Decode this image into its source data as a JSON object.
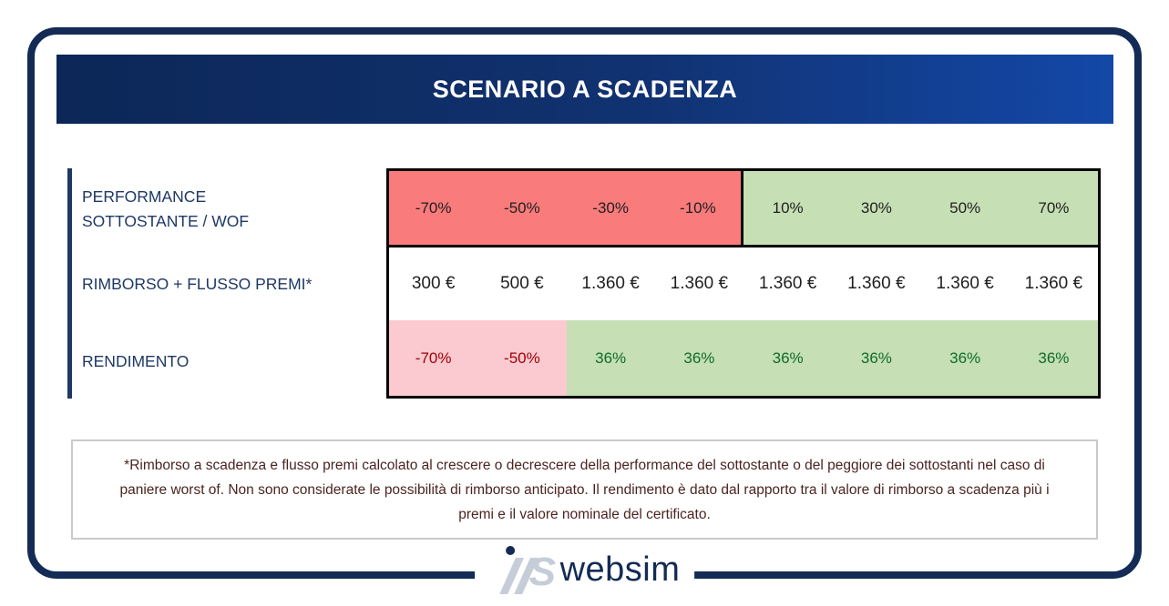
{
  "colors": {
    "navy": "#132B55",
    "header-grad-left": "#0C2757",
    "header-grad-right": "#1348A8",
    "label-blue": "#1F3864",
    "cell-red": "#F97B7B",
    "cell-green": "#C6DFB4",
    "cell-pink": "#FBC9D0",
    "text-dark-red": "#9C0006",
    "text-dark-green": "#0E6B2D",
    "footnote-text": "#4A2420",
    "footnote-border": "#C9C9C9",
    "logo-gray": "#C5CDD8"
  },
  "header": {
    "title": "SCENARIO A SCADENZA"
  },
  "table": {
    "rows": [
      {
        "label": "PERFORMANCE SOTTOSTANTE / WOF",
        "label_lines": [
          "PERFORMANCE",
          "SOTTOSTANTE / WOF"
        ],
        "values": [
          "-70%",
          "-50%",
          "-30%",
          "-10%",
          "10%",
          "30%",
          "50%",
          "70%"
        ]
      },
      {
        "label": "RIMBORSO + FLUSSO PREMI*",
        "label_lines": [
          "RIMBORSO + FLUSSO PREMI*"
        ],
        "values": [
          "300 €",
          "500 €",
          "1.360 €",
          "1.360 €",
          "1.360 €",
          "1.360 €",
          "1.360 €",
          "1.360 €"
        ]
      },
      {
        "label": "RENDIMENTO",
        "label_lines": [
          "RENDIMENTO"
        ],
        "values": [
          "-70%",
          "-50%",
          "36%",
          "36%",
          "36%",
          "36%",
          "36%",
          "36%"
        ]
      }
    ]
  },
  "footnote": {
    "text": "*Rimborso a scadenza e flusso premi calcolato al crescere o decrescere della performance del sottostante o del peggiore dei sottostanti nel caso di paniere worst of. Non sono considerate le possibilità di rimborso anticipato. Il rendimento è dato dal rapporto tra il valore di rimborso a scadenza più i premi e il valore nominale del certificato."
  },
  "logo": {
    "text": "websim"
  }
}
